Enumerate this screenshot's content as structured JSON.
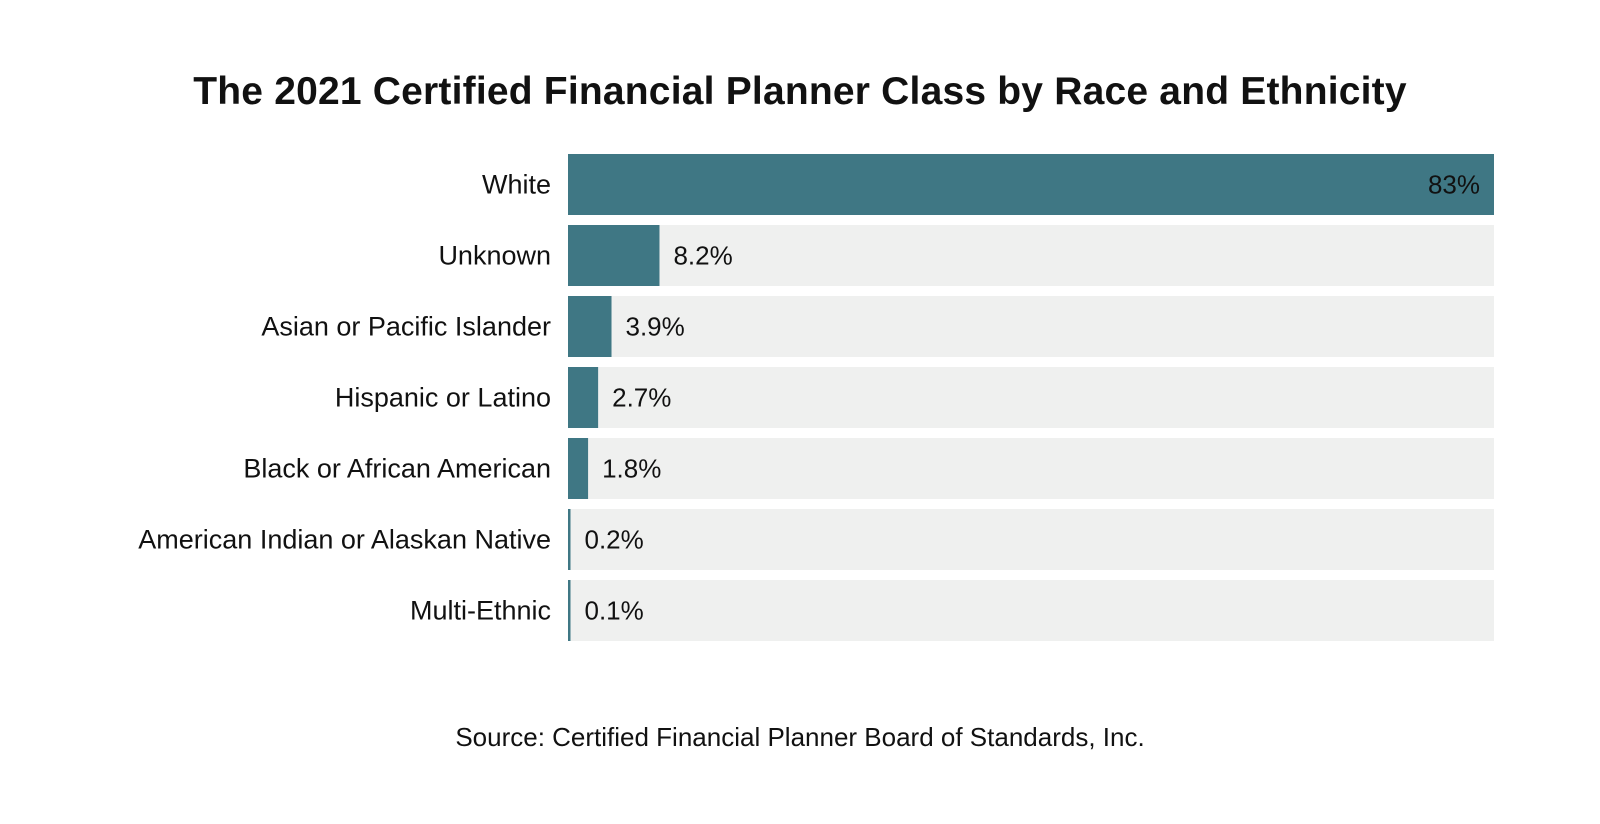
{
  "chart_data": {
    "type": "bar",
    "orientation": "horizontal",
    "title": "The 2021 Certified Financial Planner Class by Race and Ethnicity",
    "source": "Source: Certified Financial Planner Board of Standards, Inc.",
    "categories": [
      "White",
      "Unknown",
      "Asian or Pacific Islander",
      "Hispanic or Latino",
      "Black or African American",
      "American Indian or Alaskan Native",
      "Multi-Ethnic"
    ],
    "values": [
      83,
      8.2,
      3.9,
      2.7,
      1.8,
      0.2,
      0.1
    ],
    "value_labels": [
      "83%",
      "8.2%",
      "3.9%",
      "2.7%",
      "1.8%",
      "0.2%",
      "0.1%"
    ],
    "xlim": [
      0,
      83
    ],
    "grid": false,
    "legend": "none",
    "colors": {
      "bar": "#3f7784",
      "track": "#eff0ef",
      "text": "#111111"
    }
  }
}
